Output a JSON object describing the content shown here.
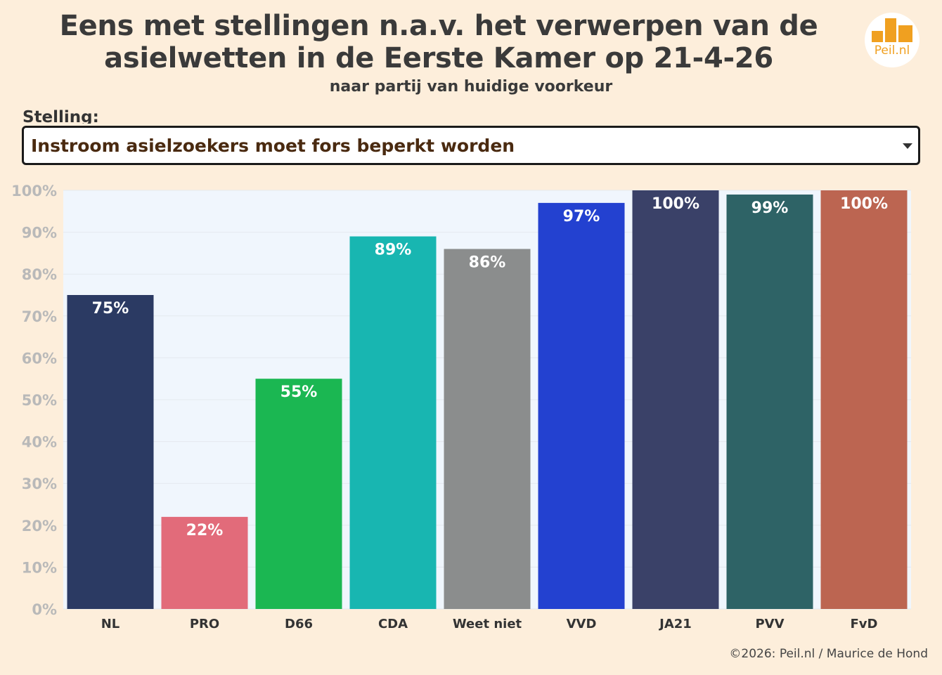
{
  "header": {
    "title_line_1": "Eens met stellingen n.a.v. het verwerpen van de",
    "title_line_2": "asielwetten in de Eerste Kamer op 21-4-26",
    "subtitle": "naar partij van huidige voorkeur",
    "logo_text": "Peil.nl",
    "logo_icon": "bar-chart-icon",
    "logo_color": "#f0a020"
  },
  "selector": {
    "label": "Stelling:",
    "selected": "Instroom asielzoekers moet fors beperkt worden"
  },
  "chart_data": {
    "type": "bar",
    "categories": [
      "NL",
      "PRO",
      "D66",
      "CDA",
      "Weet niet",
      "VVD",
      "JA21",
      "PVV",
      "FvD"
    ],
    "values": [
      75,
      22,
      55,
      89,
      86,
      97,
      100,
      99,
      100
    ],
    "data_labels": [
      "75%",
      "22%",
      "55%",
      "89%",
      "86%",
      "97%",
      "100%",
      "99%",
      "100%"
    ],
    "colors": [
      "#2b3a63",
      "#e26b7a",
      "#1bb752",
      "#18b6b1",
      "#8b8d8d",
      "#2341d0",
      "#3a4168",
      "#2e6366",
      "#bc6551"
    ],
    "ylim": [
      0,
      100
    ],
    "yticks": [
      0,
      10,
      20,
      30,
      40,
      50,
      60,
      70,
      80,
      90,
      100
    ],
    "ytick_labels": [
      "0%",
      "10%",
      "20%",
      "30%",
      "40%",
      "50%",
      "60%",
      "70%",
      "80%",
      "90%",
      "100%"
    ],
    "grid": true,
    "plot_background": "#f0f6fd"
  },
  "footer": {
    "credit": "©2026: Peil.nl / Maurice de Hond"
  }
}
